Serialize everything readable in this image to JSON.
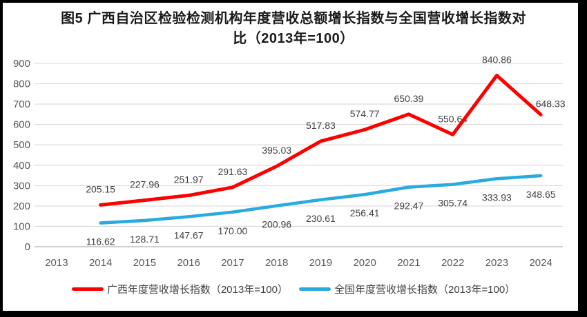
{
  "title": "图5  广西自治区检验检测机构年度营收总额增长指数与全国营收增长指数对\n比（2013年=100）",
  "colors": {
    "frame": "#000000",
    "background": "#ffffff",
    "gridline": "#d9d9d9",
    "zero_axis": "#bfbfbf",
    "tick_label": "#595959",
    "data_label": "#404040",
    "title_text": "#1a1a1a"
  },
  "chart_data": {
    "type": "line",
    "categories": [
      "2013",
      "2014",
      "2015",
      "2016",
      "2017",
      "2018",
      "2019",
      "2020",
      "2021",
      "2022",
      "2023",
      "2024"
    ],
    "series": [
      {
        "name": "广西年度营收增长指数（2013年=100）",
        "color": "#fe0000",
        "start_index": 1,
        "values": [
          205.15,
          227.96,
          251.97,
          291.63,
          395.03,
          517.83,
          574.77,
          650.39,
          550.64,
          840.86,
          648.33
        ],
        "labels": [
          "205.15",
          "227.96",
          "251.97",
          "291.63",
          "395.03",
          "517.83",
          "574.77",
          "650.39",
          "550.64",
          "840.86",
          "648.33"
        ]
      },
      {
        "name": "全国年度营收增长指数（2013年=100）",
        "color": "#29abe2",
        "start_index": 1,
        "values": [
          116.62,
          128.71,
          147.67,
          170.0,
          200.96,
          230.61,
          256.41,
          292.47,
          305.74,
          333.93,
          348.65
        ],
        "labels": [
          "116.62",
          "128.71",
          "147.67",
          "170.00",
          "200.96",
          "230.61",
          "256.41",
          "292.47",
          "305.74",
          "333.93",
          "348.65"
        ]
      }
    ],
    "ylim": [
      0,
      900
    ],
    "y_tick_step": 100,
    "y_ticks": [
      "0",
      "100",
      "200",
      "300",
      "400",
      "500",
      "600",
      "700",
      "800",
      "900"
    ],
    "grid": "horizontal",
    "legend_position": "bottom"
  }
}
